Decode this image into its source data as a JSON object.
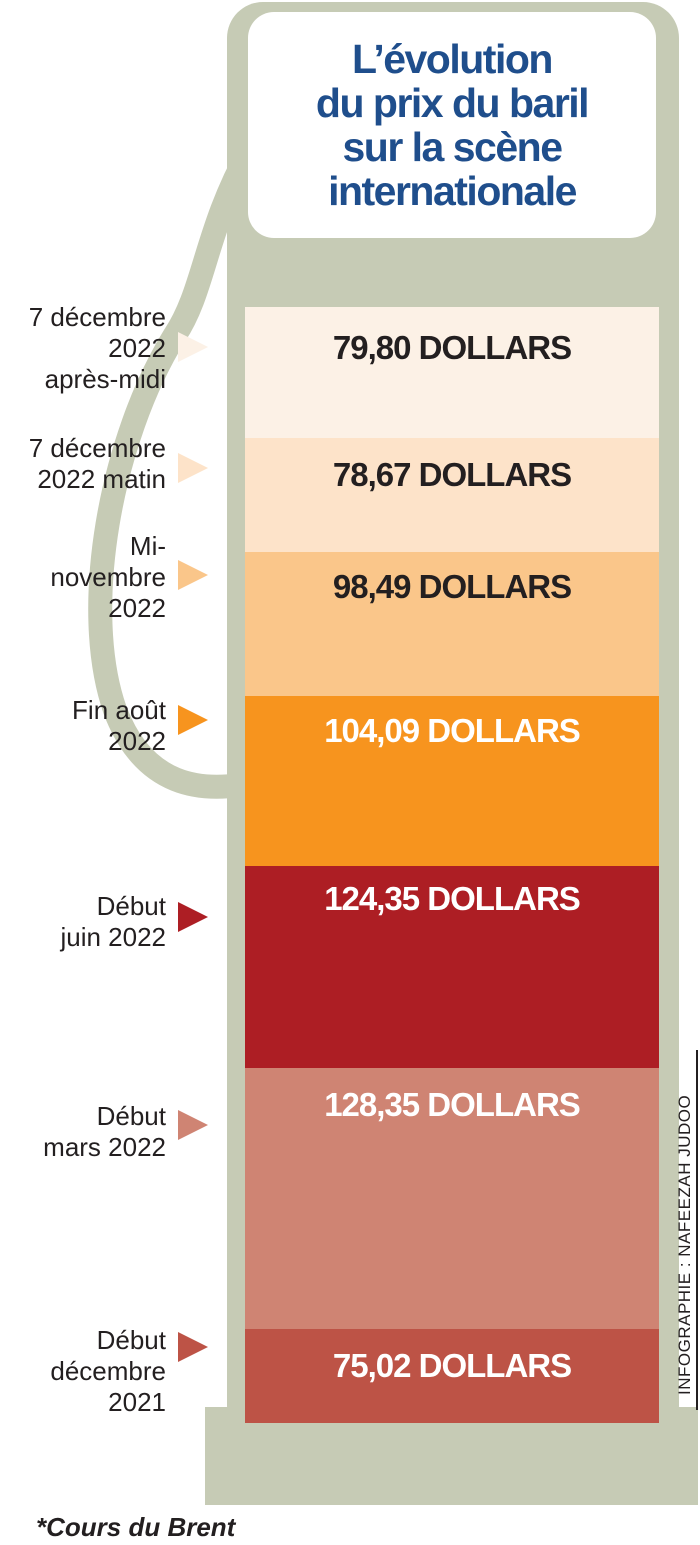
{
  "title": "L’évolution\ndu prix du baril\nsur la scène\ninternationale",
  "credit": "INFOGRAPHIE : NAFEEZAH JUDOO",
  "footnote": "*Cours du Brent",
  "colors": {
    "title": "#1f4e8c",
    "pump_body": "#c6cbb5",
    "title_box": "#ffffff",
    "label_dark": "#231f20",
    "label_light": "#ffffff"
  },
  "chart_data": {
    "type": "table",
    "unit": "DOLLARS",
    "items": [
      {
        "date": "7 décembre\n2022\naprès-midi",
        "value": 79.8,
        "label": "79,80 DOLLARS",
        "color": "#fcf1e6",
        "text_color": "#231f20"
      },
      {
        "date": "7 décembre\n2022 matin",
        "value": 78.67,
        "label": "78,67 DOLLARS",
        "color": "#fde3c9",
        "text_color": "#231f20"
      },
      {
        "date": "Mi-\nnovembre\n2022",
        "value": 98.49,
        "label": "98,49 DOLLARS",
        "color": "#fac68a",
        "text_color": "#231f20"
      },
      {
        "date": "Fin août\n2022",
        "value": 104.09,
        "label": "104,09 DOLLARS",
        "color": "#f7941e",
        "text_color": "#ffffff"
      },
      {
        "date": "Début\njuin 2022",
        "value": 124.35,
        "label": "124,35 DOLLARS",
        "color": "#ad1e24",
        "text_color": "#ffffff"
      },
      {
        "date": "Début\nmars 2022",
        "value": 128.35,
        "label": "128,35 DOLLARS",
        "color": "#cf8473",
        "text_color": "#ffffff"
      },
      {
        "date": "Début\ndécembre\n2021",
        "value": 75.02,
        "label": "75,02 DOLLARS",
        "color": "#bd5346",
        "text_color": "#ffffff"
      }
    ]
  }
}
